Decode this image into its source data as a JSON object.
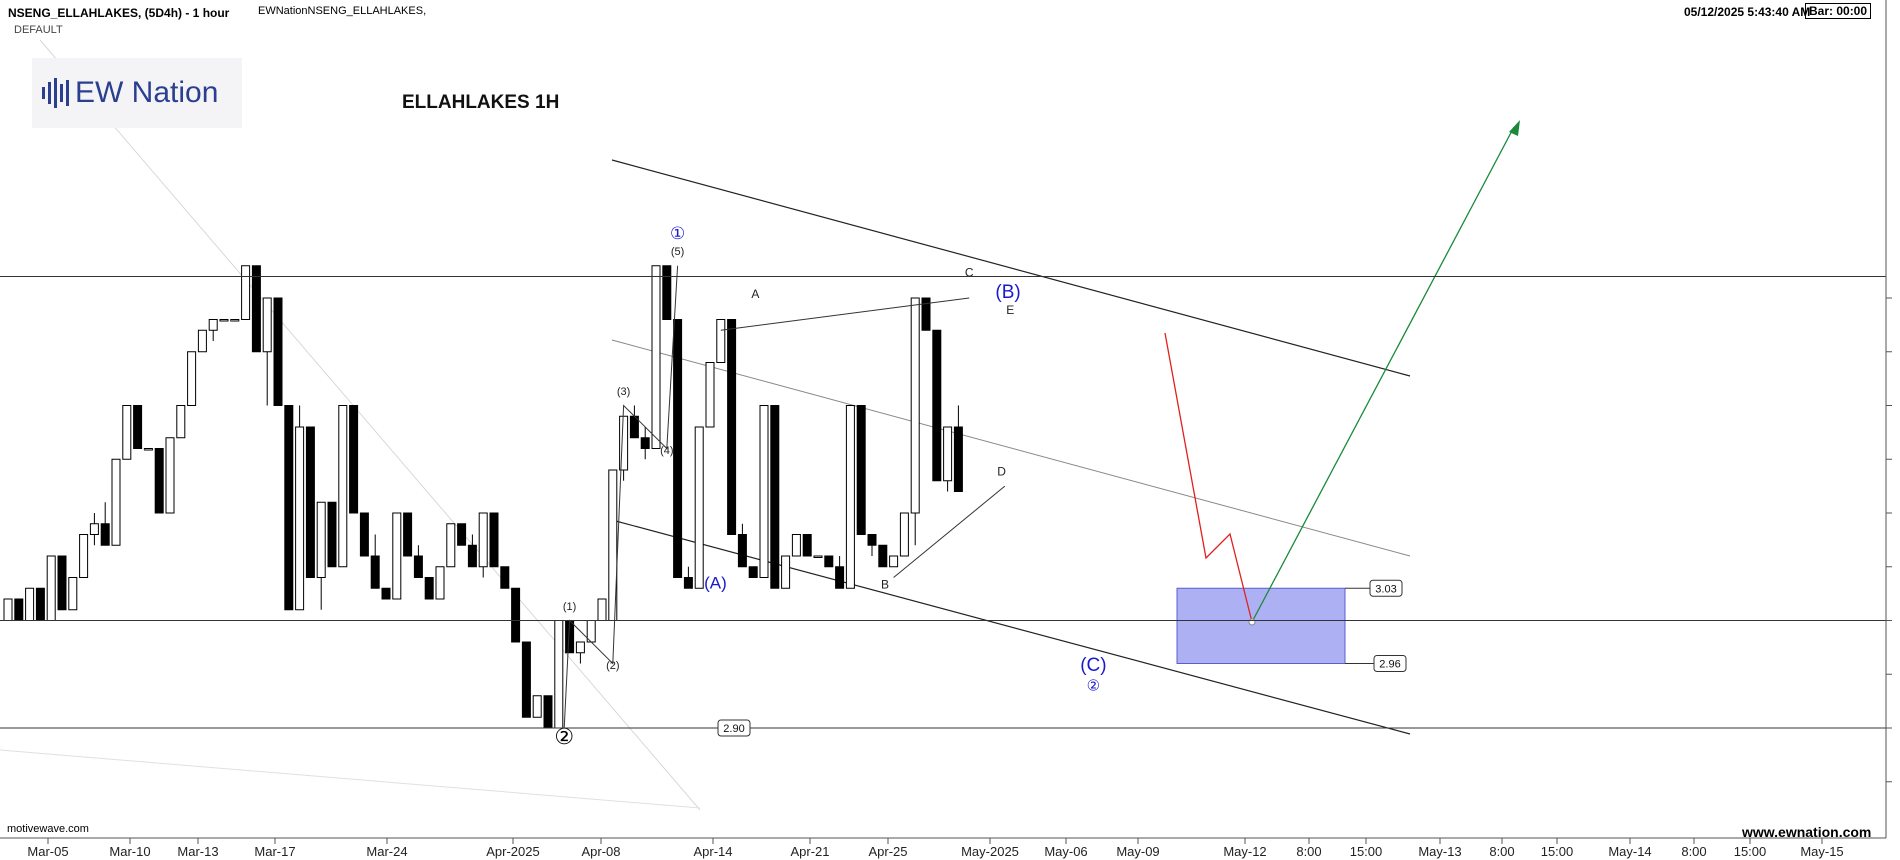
{
  "header": {
    "symbol": "NSENG_ELLAHLAKES, (5D4h) - 1 hour",
    "source": "EWNationNSENG_ELLAHLAKES,",
    "template": "DEFAULT",
    "datetime": "05/12/2025 5:43:40 AM",
    "bar": "Bar: 00:00"
  },
  "logo": {
    "text": "EW Nation"
  },
  "footer": {
    "left": "motivewave.com",
    "right": "www.ewnation.com"
  },
  "colors": {
    "up": "#ffffff",
    "down": "#000000",
    "wave_blue": "#1a1acc",
    "projection_green": "#1a8a3a",
    "projection_red": "#e02020",
    "target_box": "#9fa3f2"
  },
  "chart_data": {
    "type": "candlestick",
    "title": "ELLAHLAKES 1H",
    "x_tick_labels": [
      "Mar-05",
      "Mar-10",
      "Mar-13",
      "Mar-17",
      "Mar-24",
      "Apr-2025",
      "Apr-08",
      "Apr-14",
      "Apr-21",
      "Apr-25",
      "May-2025",
      "May-06",
      "May-09",
      "May-12",
      "8:00",
      "15:00",
      "May-13",
      "8:00",
      "15:00",
      "May-14",
      "8:00",
      "15:00",
      "May-15"
    ],
    "y_range": [
      2.78,
      3.32
    ],
    "price_labels": [
      {
        "value": 3.03,
        "text": "3.03"
      },
      {
        "value": 2.96,
        "text": "2.96"
      },
      {
        "value": 2.9,
        "text": "2.90"
      }
    ],
    "horizontal_lines": [
      3.32,
      3.0,
      2.9
    ],
    "target_zone": {
      "high": 3.03,
      "low": 2.96
    },
    "candles": [
      [
        3.0,
        3.02,
        3.0,
        3.02
      ],
      [
        3.02,
        3.02,
        3.0,
        3.0
      ],
      [
        3.0,
        3.03,
        3.0,
        3.03
      ],
      [
        3.03,
        3.03,
        3.0,
        3.0
      ],
      [
        3.0,
        3.06,
        3.0,
        3.06
      ],
      [
        3.06,
        3.06,
        3.01,
        3.01
      ],
      [
        3.01,
        3.04,
        3.01,
        3.04
      ],
      [
        3.04,
        3.08,
        3.04,
        3.08
      ],
      [
        3.08,
        3.1,
        3.07,
        3.09
      ],
      [
        3.09,
        3.11,
        3.07,
        3.07
      ],
      [
        3.07,
        3.15,
        3.07,
        3.15
      ],
      [
        3.15,
        3.2,
        3.15,
        3.2
      ],
      [
        3.2,
        3.2,
        3.16,
        3.16
      ],
      [
        3.16,
        3.16,
        3.16,
        3.16
      ],
      [
        3.16,
        3.16,
        3.1,
        3.1
      ],
      [
        3.1,
        3.17,
        3.1,
        3.17
      ],
      [
        3.17,
        3.2,
        3.17,
        3.2
      ],
      [
        3.2,
        3.25,
        3.2,
        3.25
      ],
      [
        3.25,
        3.27,
        3.25,
        3.27
      ],
      [
        3.27,
        3.28,
        3.26,
        3.28
      ],
      [
        3.28,
        3.28,
        3.28,
        3.28
      ],
      [
        3.28,
        3.28,
        3.28,
        3.28
      ],
      [
        3.28,
        3.33,
        3.28,
        3.33
      ],
      [
        3.33,
        3.33,
        3.25,
        3.25
      ],
      [
        3.25,
        3.3,
        3.2,
        3.3
      ],
      [
        3.3,
        3.3,
        3.2,
        3.2
      ],
      [
        3.2,
        3.2,
        3.01,
        3.01
      ],
      [
        3.01,
        3.2,
        3.01,
        3.18
      ],
      [
        3.18,
        3.18,
        3.04,
        3.04
      ],
      [
        3.04,
        3.11,
        3.01,
        3.11
      ],
      [
        3.11,
        3.11,
        3.05,
        3.05
      ],
      [
        3.05,
        3.2,
        3.05,
        3.2
      ],
      [
        3.2,
        3.2,
        3.1,
        3.1
      ],
      [
        3.1,
        3.1,
        3.06,
        3.06
      ],
      [
        3.06,
        3.08,
        3.03,
        3.03
      ],
      [
        3.03,
        3.03,
        3.02,
        3.02
      ],
      [
        3.02,
        3.1,
        3.02,
        3.1
      ],
      [
        3.1,
        3.1,
        3.06,
        3.06
      ],
      [
        3.06,
        3.07,
        3.04,
        3.04
      ],
      [
        3.04,
        3.04,
        3.02,
        3.02
      ],
      [
        3.02,
        3.05,
        3.02,
        3.05
      ],
      [
        3.05,
        3.09,
        3.05,
        3.09
      ],
      [
        3.09,
        3.09,
        3.07,
        3.07
      ],
      [
        3.07,
        3.08,
        3.05,
        3.05
      ],
      [
        3.05,
        3.1,
        3.04,
        3.1
      ],
      [
        3.1,
        3.1,
        3.05,
        3.05
      ],
      [
        3.05,
        3.05,
        3.03,
        3.03
      ],
      [
        3.03,
        3.03,
        2.98,
        2.98
      ],
      [
        2.98,
        2.98,
        2.91,
        2.91
      ],
      [
        2.91,
        2.93,
        2.91,
        2.93
      ],
      [
        2.93,
        2.93,
        2.9,
        2.9
      ],
      [
        2.9,
        3.0,
        2.9,
        3.0
      ],
      [
        3.0,
        3.0,
        2.97,
        2.97
      ],
      [
        2.97,
        2.98,
        2.96,
        2.98
      ],
      [
        2.98,
        3.0,
        2.98,
        3.0
      ],
      [
        3.0,
        3.02,
        3.0,
        3.02
      ],
      [
        3.0,
        3.14,
        3.0,
        3.14
      ],
      [
        3.14,
        3.19,
        3.13,
        3.19
      ],
      [
        3.19,
        3.2,
        3.17,
        3.17
      ],
      [
        3.17,
        3.18,
        3.15,
        3.16
      ],
      [
        3.16,
        3.33,
        3.16,
        3.33
      ],
      [
        3.33,
        3.33,
        3.28,
        3.28
      ],
      [
        3.28,
        3.28,
        3.04,
        3.04
      ],
      [
        3.04,
        3.05,
        3.03,
        3.03
      ],
      [
        3.03,
        3.18,
        3.03,
        3.18
      ],
      [
        3.18,
        3.24,
        3.18,
        3.24
      ],
      [
        3.24,
        3.28,
        3.24,
        3.28
      ],
      [
        3.28,
        3.28,
        3.08,
        3.08
      ],
      [
        3.08,
        3.09,
        3.05,
        3.05
      ],
      [
        3.05,
        3.05,
        3.04,
        3.04
      ],
      [
        3.04,
        3.2,
        3.04,
        3.2
      ],
      [
        3.2,
        3.2,
        3.03,
        3.03
      ],
      [
        3.03,
        3.06,
        3.03,
        3.06
      ],
      [
        3.06,
        3.08,
        3.06,
        3.08
      ],
      [
        3.08,
        3.08,
        3.06,
        3.06
      ],
      [
        3.06,
        3.06,
        3.06,
        3.06
      ],
      [
        3.06,
        3.06,
        3.05,
        3.05
      ],
      [
        3.05,
        3.06,
        3.03,
        3.03
      ],
      [
        3.03,
        3.2,
        3.03,
        3.2
      ],
      [
        3.2,
        3.2,
        3.08,
        3.08
      ],
      [
        3.08,
        3.08,
        3.06,
        3.07
      ],
      [
        3.07,
        3.07,
        3.05,
        3.05
      ],
      [
        3.05,
        3.06,
        3.05,
        3.06
      ],
      [
        3.06,
        3.1,
        3.06,
        3.1
      ],
      [
        3.1,
        3.3,
        3.07,
        3.3
      ],
      [
        3.3,
        3.3,
        3.27,
        3.27
      ],
      [
        3.27,
        3.27,
        3.13,
        3.13
      ],
      [
        3.13,
        3.18,
        3.12,
        3.18
      ],
      [
        3.18,
        3.2,
        3.12,
        3.12
      ]
    ],
    "annotations": [
      {
        "text": "①",
        "x": 62,
        "y": 3.355,
        "color": "#1a1acc",
        "size": 17
      },
      {
        "text": "(5)",
        "x": 62,
        "y": 3.34,
        "color": "#222",
        "size": 11
      },
      {
        "text": "(3)",
        "x": 57,
        "y": 3.21,
        "color": "#222",
        "size": 11
      },
      {
        "text": "(4)",
        "x": 61,
        "y": 3.155,
        "color": "#222",
        "size": 11
      },
      {
        "text": "(1)",
        "x": 52,
        "y": 3.01,
        "color": "#222",
        "size": 11
      },
      {
        "text": "(2)",
        "x": 56,
        "y": 2.955,
        "color": "#222",
        "size": 11
      },
      {
        "text": "②",
        "x": 51.5,
        "y": 2.885,
        "color": "#000",
        "size": 22
      },
      {
        "text": "(A)",
        "x": 65.5,
        "y": 3.03,
        "color": "#1a1acc",
        "size": 17
      },
      {
        "text": "A",
        "x": 69.2,
        "y": 3.3,
        "color": "#222",
        "size": 12
      },
      {
        "text": "B",
        "x": 81.2,
        "y": 3.03,
        "color": "#222",
        "size": 12
      },
      {
        "text": "C",
        "x": 89,
        "y": 3.32,
        "color": "#222",
        "size": 12
      },
      {
        "text": "D",
        "x": 92,
        "y": 3.135,
        "color": "#222",
        "size": 12
      },
      {
        "text": "E",
        "x": 92.8,
        "y": 3.285,
        "color": "#222",
        "size": 12
      },
      {
        "text": "(B)",
        "x": 92.6,
        "y": 3.3,
        "color": "#1a1acc",
        "size": 19
      },
      {
        "text": "(C)",
        "x": 100.5,
        "y": 2.953,
        "color": "#1a1acc",
        "size": 19
      },
      {
        "text": "②",
        "x": 100.5,
        "y": 2.935,
        "color": "#1a1acc",
        "size": 15
      }
    ]
  }
}
